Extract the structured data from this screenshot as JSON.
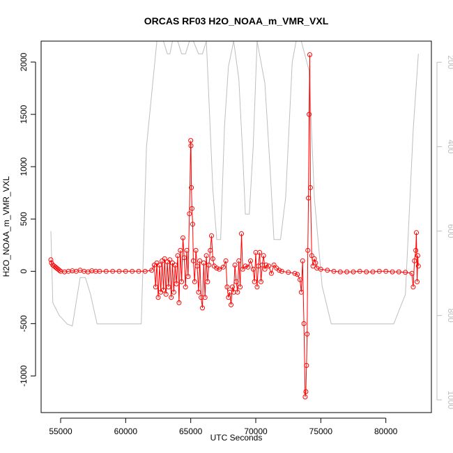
{
  "chart_data": {
    "type": "line",
    "title": "ORCAS RF03 H2O_NOAA_m_VMR_VXL",
    "xlabel": "UTC Seconds",
    "ylabel": "H2O_NOAA_m_VMR_VXL",
    "xlim": [
      53500,
      83500
    ],
    "ylim": [
      -1350,
      2200
    ],
    "right_ylim_top_to_bottom": [
      150,
      1030
    ],
    "x_ticks": [
      55000,
      60000,
      65000,
      70000,
      75000,
      80000
    ],
    "y_ticks": [
      -1000,
      -500,
      0,
      500,
      1000,
      1500,
      2000
    ],
    "right_ticks": [
      200,
      400,
      600,
      800,
      1000
    ],
    "colors": {
      "primary": "#ff0000",
      "secondary": "#bebebe",
      "axes": "#000000"
    },
    "series": [
      {
        "role": "primary",
        "axis": "left",
        "style": "line+open-circle",
        "color": "#ff0000",
        "points": [
          [
            54250,
            110
          ],
          [
            54300,
            80
          ],
          [
            54400,
            60
          ],
          [
            54500,
            50
          ],
          [
            54600,
            40
          ],
          [
            54700,
            30
          ],
          [
            54800,
            20
          ],
          [
            54900,
            10
          ],
          [
            55000,
            0
          ],
          [
            55300,
            -5
          ],
          [
            55600,
            0
          ],
          [
            55900,
            5
          ],
          [
            56200,
            0
          ],
          [
            56500,
            10
          ],
          [
            56800,
            0
          ],
          [
            57100,
            -5
          ],
          [
            57400,
            5
          ],
          [
            57700,
            0
          ],
          [
            58000,
            0
          ],
          [
            58500,
            0
          ],
          [
            59000,
            0
          ],
          [
            59500,
            0
          ],
          [
            60000,
            0
          ],
          [
            60500,
            0
          ],
          [
            61000,
            0
          ],
          [
            61500,
            0
          ],
          [
            62000,
            10
          ],
          [
            62200,
            60
          ],
          [
            62300,
            -150
          ],
          [
            62400,
            80
          ],
          [
            62500,
            -250
          ],
          [
            62600,
            60
          ],
          [
            62700,
            -200
          ],
          [
            62800,
            100
          ],
          [
            62900,
            -180
          ],
          [
            63000,
            120
          ],
          [
            63100,
            -220
          ],
          [
            63200,
            90
          ],
          [
            63300,
            -150
          ],
          [
            63400,
            110
          ],
          [
            63500,
            -250
          ],
          [
            63600,
            80
          ],
          [
            63700,
            -200
          ],
          [
            63800,
            60
          ],
          [
            63900,
            -120
          ],
          [
            64000,
            150
          ],
          [
            64100,
            -300
          ],
          [
            64200,
            200
          ],
          [
            64300,
            -100
          ],
          [
            64400,
            320
          ],
          [
            64500,
            130
          ],
          [
            64600,
            -150
          ],
          [
            64700,
            200
          ],
          [
            64800,
            -50
          ],
          [
            64900,
            550
          ],
          [
            65000,
            1250
          ],
          [
            65020,
            1200
          ],
          [
            65050,
            800
          ],
          [
            65100,
            600
          ],
          [
            65150,
            450
          ],
          [
            65200,
            100
          ],
          [
            65300,
            -100
          ],
          [
            65400,
            200
          ],
          [
            65500,
            50
          ],
          [
            65600,
            -200
          ],
          [
            65700,
            100
          ],
          [
            65800,
            -250
          ],
          [
            65900,
            -350
          ],
          [
            66000,
            80
          ],
          [
            66100,
            -250
          ],
          [
            66200,
            150
          ],
          [
            66300,
            -100
          ],
          [
            66400,
            60
          ],
          [
            66500,
            200
          ],
          [
            66600,
            340
          ],
          [
            66700,
            120
          ],
          [
            66800,
            50
          ],
          [
            67000,
            30
          ],
          [
            67200,
            20
          ],
          [
            67500,
            40
          ],
          [
            67700,
            100
          ],
          [
            67800,
            -150
          ],
          [
            67900,
            -250
          ],
          [
            68000,
            -200
          ],
          [
            68100,
            -320
          ],
          [
            68200,
            -150
          ],
          [
            68300,
            -200
          ],
          [
            68400,
            60
          ],
          [
            68500,
            -100
          ],
          [
            68600,
            -200
          ],
          [
            68700,
            100
          ],
          [
            68800,
            -150
          ],
          [
            68900,
            360
          ],
          [
            69000,
            20
          ],
          [
            69200,
            50
          ],
          [
            69400,
            40
          ],
          [
            69600,
            100
          ],
          [
            69800,
            20
          ],
          [
            69900,
            -100
          ],
          [
            70000,
            180
          ],
          [
            70100,
            -150
          ],
          [
            70200,
            50
          ],
          [
            70300,
            180
          ],
          [
            70400,
            -100
          ],
          [
            70500,
            60
          ],
          [
            70600,
            150
          ],
          [
            70700,
            20
          ],
          [
            70800,
            60
          ],
          [
            71000,
            50
          ],
          [
            71200,
            -20
          ],
          [
            71400,
            60
          ],
          [
            71600,
            30
          ],
          [
            71800,
            10
          ],
          [
            72000,
            0
          ],
          [
            72500,
            -10
          ],
          [
            73000,
            -20
          ],
          [
            73200,
            -30
          ],
          [
            73400,
            -80
          ],
          [
            73500,
            -200
          ],
          [
            73600,
            100
          ],
          [
            73700,
            -500
          ],
          [
            73800,
            -1200
          ],
          [
            73850,
            -1150
          ],
          [
            73900,
            -900
          ],
          [
            73950,
            -600
          ],
          [
            74000,
            200
          ],
          [
            74050,
            700
          ],
          [
            74100,
            1500
          ],
          [
            74150,
            2070
          ],
          [
            74200,
            800
          ],
          [
            74300,
            150
          ],
          [
            74400,
            50
          ],
          [
            74500,
            120
          ],
          [
            74600,
            80
          ],
          [
            74700,
            30
          ],
          [
            75000,
            20
          ],
          [
            75500,
            10
          ],
          [
            76000,
            0
          ],
          [
            76500,
            -5
          ],
          [
            77000,
            -5
          ],
          [
            77500,
            -5
          ],
          [
            78000,
            0
          ],
          [
            78500,
            -5
          ],
          [
            79000,
            -5
          ],
          [
            79500,
            0
          ],
          [
            80000,
            0
          ],
          [
            80500,
            -5
          ],
          [
            81000,
            -5
          ],
          [
            81500,
            -10
          ],
          [
            82000,
            -20
          ],
          [
            82100,
            -150
          ],
          [
            82200,
            100
          ],
          [
            82300,
            200
          ],
          [
            82350,
            370
          ],
          [
            82400,
            -100
          ],
          [
            82450,
            150
          ],
          [
            82500,
            50
          ]
        ]
      },
      {
        "role": "secondary",
        "axis": "right",
        "style": "line",
        "color": "#bebebe",
        "points": [
          [
            54250,
            600
          ],
          [
            54400,
            770
          ],
          [
            54900,
            800
          ],
          [
            55500,
            820
          ],
          [
            55900,
            825
          ],
          [
            56500,
            710
          ],
          [
            56900,
            710
          ],
          [
            57300,
            750
          ],
          [
            57800,
            820
          ],
          [
            61200,
            820
          ],
          [
            61600,
            400
          ],
          [
            62400,
            150
          ],
          [
            62900,
            150
          ],
          [
            63200,
            180
          ],
          [
            63400,
            180
          ],
          [
            63600,
            150
          ],
          [
            64000,
            150
          ],
          [
            64300,
            180
          ],
          [
            64600,
            180
          ],
          [
            64900,
            150
          ],
          [
            65200,
            150
          ],
          [
            65600,
            180
          ],
          [
            65900,
            180
          ],
          [
            66200,
            150
          ],
          [
            66700,
            500
          ],
          [
            67000,
            620
          ],
          [
            67300,
            620
          ],
          [
            67600,
            350
          ],
          [
            67900,
            210
          ],
          [
            68300,
            150
          ],
          [
            68700,
            240
          ],
          [
            69000,
            420
          ],
          [
            69200,
            560
          ],
          [
            69500,
            560
          ],
          [
            69800,
            400
          ],
          [
            70100,
            150
          ],
          [
            70700,
            250
          ],
          [
            71100,
            450
          ],
          [
            71400,
            620
          ],
          [
            71900,
            620
          ],
          [
            72300,
            520
          ],
          [
            72800,
            200
          ],
          [
            73100,
            150
          ],
          [
            73500,
            150
          ],
          [
            74100,
            220
          ],
          [
            74500,
            520
          ],
          [
            75100,
            730
          ],
          [
            75800,
            820
          ],
          [
            80600,
            820
          ],
          [
            81500,
            750
          ],
          [
            82100,
            360
          ],
          [
            82500,
            180
          ]
        ]
      }
    ]
  }
}
